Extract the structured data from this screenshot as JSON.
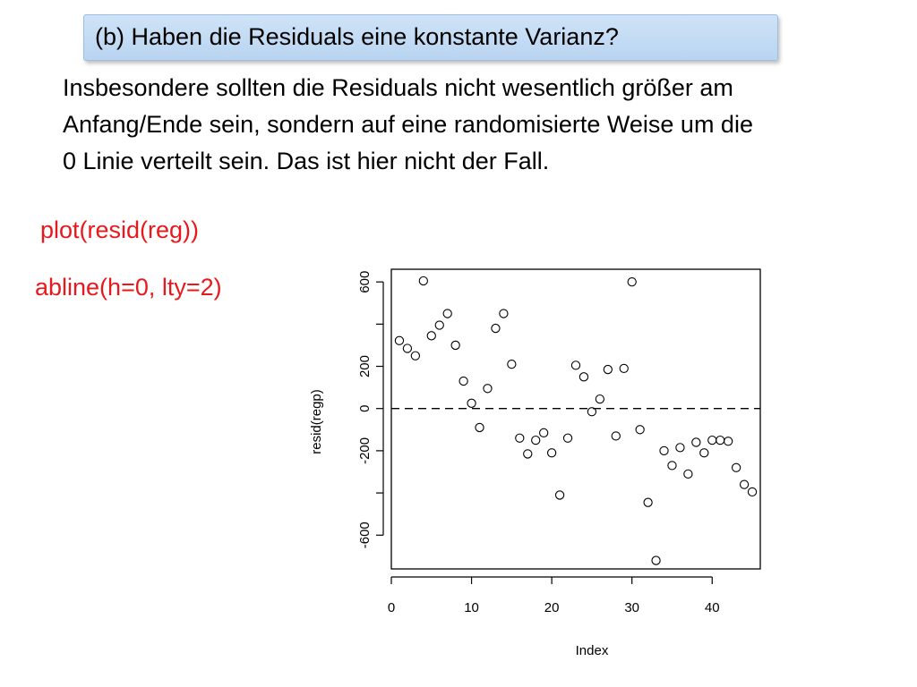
{
  "heading": "(b) Haben die Residuals eine konstante Varianz?",
  "description_lines": [
    "Insbesondere sollten die Residuals nicht wesentlich größer am",
    "Anfang/Ende sein, sondern auf eine randomisierte Weise um die",
    "0 Linie verteilt sein. Das ist hier nicht der Fall."
  ],
  "code": [
    "plot(resid(reg))",
    "abline(h=0, lty=2)"
  ],
  "chart_data": {
    "type": "scatter",
    "xlabel": "Index",
    "ylabel": "resid(regp)",
    "xlim": [
      0,
      46
    ],
    "ylim": [
      -760,
      660
    ],
    "x_ticks": [
      0,
      10,
      20,
      30,
      40
    ],
    "x_tick_labels": [
      "0",
      "10",
      "20",
      "30",
      "40"
    ],
    "y_ticks": [
      -600,
      -400,
      -200,
      0,
      200,
      400,
      600
    ],
    "y_tick_labels": [
      "-600",
      "",
      "-200",
      "0",
      "200",
      "",
      "600"
    ],
    "hline": {
      "y": 0,
      "style": "dashed"
    },
    "grid": false,
    "x": [
      1,
      2,
      3,
      4,
      5,
      6,
      7,
      8,
      9,
      10,
      11,
      12,
      13,
      14,
      15,
      16,
      17,
      18,
      19,
      20,
      21,
      22,
      23,
      24,
      25,
      26,
      27,
      28,
      29,
      30,
      31,
      32,
      33,
      34,
      35,
      36,
      37,
      38,
      39,
      40,
      41,
      42,
      43,
      44,
      45
    ],
    "y": [
      322,
      285,
      250,
      605,
      345,
      395,
      450,
      300,
      130,
      25,
      -90,
      95,
      380,
      450,
      210,
      -140,
      -215,
      -150,
      -115,
      -210,
      -410,
      -140,
      205,
      150,
      -15,
      45,
      185,
      -130,
      190,
      600,
      -100,
      -445,
      -720,
      -200,
      -270,
      -185,
      -310,
      -160,
      -210,
      -150,
      -150,
      -155,
      -280,
      -360,
      -395
    ]
  }
}
